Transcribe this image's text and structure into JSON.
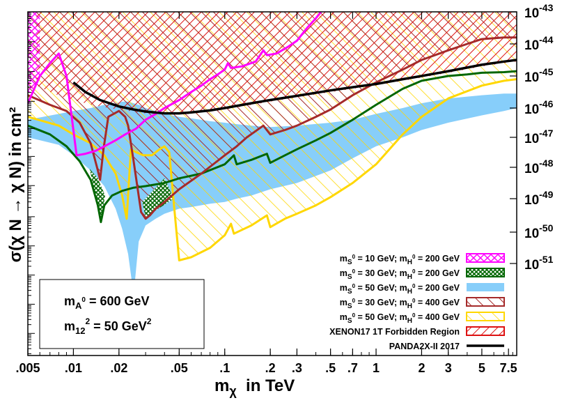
{
  "chart_data": {
    "type": "line",
    "xlabel": {
      "main": "m",
      "sub": "χ",
      "rest": "  in TeV"
    },
    "ylabel": "σ(χ N → χ N) in cm²",
    "x_scale": "log",
    "y_scale": "log",
    "xlim": [
      0.005,
      8.5
    ],
    "ylim_left": [
      1e-55,
      1e-43
    ],
    "ylim_right": [
      1e-51,
      1e-43
    ],
    "x_ticks": [
      {
        "value": 0.005,
        "label": ".005"
      },
      {
        "value": 0.01,
        "label": ".01"
      },
      {
        "value": 0.02,
        "label": ".02"
      },
      {
        "value": 0.05,
        "label": ".05"
      },
      {
        "value": 0.1,
        "label": ".1"
      },
      {
        "value": 0.2,
        "label": ".2"
      },
      {
        "value": 0.3,
        "label": ".3"
      },
      {
        "value": 0.5,
        "label": ".5"
      },
      {
        "value": 0.7,
        "label": ".7"
      },
      {
        "value": 1,
        "label": "1"
      },
      {
        "value": 2,
        "label": "2"
      },
      {
        "value": 3,
        "label": "3"
      },
      {
        "value": 5,
        "label": "5"
      },
      {
        "value": 7.5,
        "label": "7.5"
      }
    ],
    "y_ticks_right": [
      {
        "exp": -43,
        "base": "10",
        "sup": "-43"
      },
      {
        "exp": -44,
        "base": "10",
        "sup": "-44"
      },
      {
        "exp": -45,
        "base": "10",
        "sup": "-45"
      },
      {
        "exp": -46,
        "base": "10",
        "sup": "-46"
      },
      {
        "exp": -47,
        "base": "10",
        "sup": "-47"
      },
      {
        "exp": -48,
        "base": "10",
        "sup": "-48"
      },
      {
        "exp": -49,
        "base": "10",
        "sup": "-49"
      },
      {
        "exp": -50,
        "base": "10",
        "sup": "-50"
      },
      {
        "exp": -51,
        "base": "10",
        "sup": "-51"
      }
    ],
    "series": [
      {
        "name": "mS0 = 10 GeV; mH0 = 200 GeV",
        "color": "#ff00ff",
        "x": [
          0.005,
          0.006,
          0.007,
          0.008,
          0.009,
          0.0105,
          0.012,
          0.014,
          0.016,
          0.019,
          0.022,
          0.026,
          0.03,
          0.035,
          0.04,
          0.05,
          0.06,
          0.07,
          0.08,
          0.09,
          0.1,
          0.105,
          0.11,
          0.13,
          0.16,
          0.18,
          0.19,
          0.22,
          0.26,
          0.3,
          0.35,
          0.4,
          0.45
        ],
        "y": [
          -45.85,
          -45.0,
          -44.6,
          -44.3,
          -45.0,
          -47.6,
          -47.55,
          -47.45,
          -47.3,
          -47.1,
          -46.9,
          -46.7,
          -46.4,
          -46.2,
          -46.0,
          -45.75,
          -45.5,
          -45.3,
          -45.1,
          -44.95,
          -44.8,
          -44.6,
          -44.75,
          -44.7,
          -44.55,
          -44.2,
          -44.35,
          -44.3,
          -44.1,
          -43.9,
          -43.5,
          -43.2,
          -42.9
        ]
      },
      {
        "name": "mS0 = 30 GeV; mH0 = 200 GeV",
        "color": "#006600",
        "x": [
          0.005,
          0.007,
          0.009,
          0.011,
          0.013,
          0.0145,
          0.0152,
          0.016,
          0.018,
          0.021,
          0.025,
          0.03,
          0.04,
          0.05,
          0.07,
          0.1,
          0.115,
          0.12,
          0.15,
          0.19,
          0.2,
          0.25,
          0.3,
          0.4,
          0.5,
          0.7,
          1,
          1.5,
          2,
          3,
          4,
          5,
          7,
          8.5
        ],
        "y": [
          -46.6,
          -46.9,
          -47.3,
          -47.8,
          -48.4,
          -49.2,
          -49.7,
          -49.2,
          -48.9,
          -48.75,
          -48.65,
          -48.6,
          -48.5,
          -48.35,
          -48.2,
          -47.9,
          -47.6,
          -47.9,
          -47.75,
          -47.55,
          -47.85,
          -47.6,
          -47.4,
          -47.1,
          -46.85,
          -46.4,
          -45.9,
          -45.4,
          -45.15,
          -45.0,
          -44.95,
          -44.9,
          -44.88,
          -44.85
        ]
      },
      {
        "name": "mS0 = 50 GeV; mH0 = 200 GeV",
        "color": "#87cefa",
        "x": [
          0.005,
          0.008,
          0.01,
          0.013,
          0.016,
          0.019,
          0.021,
          0.023,
          0.025,
          0.027,
          0.03,
          0.035,
          0.04,
          0.05,
          0.06,
          0.08,
          0.1,
          0.12,
          0.15,
          0.2,
          0.3,
          0.5,
          0.7,
          1,
          1.5,
          2,
          3,
          5,
          7,
          8.5
        ],
        "y_upper": [
          -46.4,
          -46.2,
          -46.1,
          -46.0,
          -45.9,
          -45.85,
          -45.8,
          -45.8,
          -45.85,
          -45.9,
          -46.0,
          -46.1,
          -46.2,
          -46.3,
          -46.35,
          -46.45,
          -46.5,
          -46.55,
          -46.6,
          -46.65,
          -46.6,
          -46.5,
          -46.4,
          -46.2,
          -46.0,
          -45.85,
          -45.7,
          -45.6,
          -45.55,
          -45.55
        ],
        "y_lower": [
          -47.0,
          -47.25,
          -47.6,
          -48.1,
          -48.6,
          -49.3,
          -49.9,
          -50.7,
          -52.0,
          -50.3,
          -49.8,
          -49.6,
          -49.45,
          -49.3,
          -49.25,
          -49.15,
          -49.1,
          -49.0,
          -48.9,
          -48.7,
          -48.5,
          -48.1,
          -47.7,
          -47.3,
          -47.0,
          -46.75,
          -46.5,
          -46.25,
          -46.1,
          -46.0
        ]
      },
      {
        "name": "mS0 = 30 GeV; mH0 = 400 GeV",
        "color": "#a52a2a",
        "x": [
          0.005,
          0.007,
          0.009,
          0.011,
          0.013,
          0.0145,
          0.015,
          0.0158,
          0.017,
          0.02,
          0.022,
          0.023,
          0.025,
          0.028,
          0.03,
          0.032,
          0.035,
          0.04,
          0.05,
          0.07,
          0.1,
          0.12,
          0.14,
          0.18,
          0.2,
          0.25,
          0.3,
          0.4,
          0.5,
          0.7,
          1,
          1.5,
          2,
          3,
          4,
          5,
          7,
          8.5
        ],
        "y": [
          -45.6,
          -45.9,
          -46.1,
          -46.5,
          -47.2,
          -48.1,
          -48.4,
          -47.4,
          -46.3,
          -46.1,
          -46.3,
          -46.6,
          -47.8,
          -49.4,
          -49.6,
          -49.5,
          -49.3,
          -49.1,
          -48.7,
          -48.2,
          -47.6,
          -47.3,
          -47.0,
          -46.6,
          -46.9,
          -46.75,
          -46.6,
          -46.3,
          -46.05,
          -45.6,
          -45.2,
          -44.8,
          -44.5,
          -44.2,
          -44.0,
          -43.85,
          -43.8,
          -43.8
        ]
      },
      {
        "name": "mS0 = 50 GeV; mH0 = 400 GeV",
        "color": "#ffd700",
        "x": [
          0.005,
          0.008,
          0.01,
          0.013,
          0.016,
          0.019,
          0.021,
          0.0225,
          0.024,
          0.026,
          0.029,
          0.033,
          0.037,
          0.04,
          0.043,
          0.046,
          0.05,
          0.06,
          0.08,
          0.1,
          0.11,
          0.115,
          0.15,
          0.19,
          0.2,
          0.25,
          0.3,
          0.4,
          0.5,
          0.7,
          1,
          1.5,
          2,
          3,
          5,
          7,
          8.5
        ],
        "y": [
          -46.3,
          -46.6,
          -46.9,
          -47.2,
          -47.6,
          -48.2,
          -48.9,
          -49.6,
          -47.4,
          -47.5,
          -47.6,
          -47.6,
          -47.4,
          -47.3,
          -47.5,
          -49.1,
          -50.9,
          -50.8,
          -50.5,
          -50.1,
          -49.75,
          -50.05,
          -49.8,
          -49.5,
          -49.85,
          -49.6,
          -49.45,
          -49.2,
          -48.95,
          -48.5,
          -47.9,
          -46.9,
          -46.3,
          -45.7,
          -45.3,
          -45.15,
          -45.1
        ]
      },
      {
        "name": "PANDA2X-II 2017",
        "color": "#000000",
        "x": [
          0.01,
          0.012,
          0.015,
          0.02,
          0.025,
          0.03,
          0.04,
          0.05,
          0.06,
          0.08,
          0.1,
          0.15,
          0.2,
          0.3,
          0.5,
          0.7,
          1,
          1.5,
          2,
          3,
          5,
          7,
          8.5
        ],
        "y": [
          -45.2,
          -45.5,
          -45.75,
          -45.95,
          -46.05,
          -46.12,
          -46.18,
          -46.18,
          -46.15,
          -46.08,
          -46.0,
          -45.85,
          -45.75,
          -45.62,
          -45.45,
          -45.35,
          -45.25,
          -45.1,
          -45.0,
          -44.85,
          -44.65,
          -44.55,
          -44.5
        ]
      }
    ],
    "forbidden_region": {
      "name": "XENON17 1T Forbidden Region",
      "color": "#dd1111",
      "x": [
        0.0057,
        0.007,
        0.009,
        0.012,
        0.015,
        0.02,
        0.025,
        0.03,
        0.04,
        0.05,
        0.06,
        0.08,
        0.1,
        0.15,
        0.2,
        0.3,
        0.5,
        0.7,
        1,
        1.5,
        2,
        3,
        5,
        7,
        8.5
      ],
      "y_lower": [
        -45.3,
        -45.5,
        -45.7,
        -45.85,
        -45.95,
        -46.05,
        -46.12,
        -46.18,
        -46.22,
        -46.22,
        -46.2,
        -46.12,
        -46.05,
        -45.9,
        -45.8,
        -45.67,
        -45.5,
        -45.4,
        -45.3,
        -45.15,
        -45.05,
        -44.9,
        -44.7,
        -44.6,
        -44.55
      ]
    },
    "annotation": {
      "line1": {
        "main": "m",
        "sub": "A",
        "sup_in_sub": "0",
        "rest": " = 600 GeV"
      },
      "line2": {
        "main": "m",
        "sub": "12",
        "sup": "2",
        "rest": " = 50 GeV",
        "sup2": "2"
      }
    },
    "legend": [
      {
        "pre": "m",
        "s_sub": "S",
        "s_sup": "0",
        "mid": " = 10 GeV; m",
        "h_sub": "H",
        "h_sup": "0",
        "post": " = 200 GeV",
        "style": "crosshatch",
        "color": "#ff00ff"
      },
      {
        "pre": "m",
        "s_sub": "S",
        "s_sup": "0",
        "mid": " = 30 GeV; m",
        "h_sub": "H",
        "h_sup": "0",
        "post": " = 200 GeV",
        "style": "crosshatch",
        "color": "#006600"
      },
      {
        "pre": "m",
        "s_sub": "S",
        "s_sup": "0",
        "mid": " = 50 GeV; m",
        "h_sub": "H",
        "h_sup": "0",
        "post": " = 200 GeV",
        "style": "solid",
        "color": "#87cefa"
      },
      {
        "pre": "m",
        "s_sub": "S",
        "s_sup": "0",
        "mid": " = 30 GeV; m",
        "h_sub": "H",
        "h_sup": "0",
        "post": " = 400 GeV",
        "style": "hatch",
        "color": "#a52a2a"
      },
      {
        "pre": "m",
        "s_sub": "S",
        "s_sup": "0",
        "mid": " = 50 GeV; m",
        "h_sub": "H",
        "h_sup": "0",
        "post": " = 400 GeV",
        "style": "hatch",
        "color": "#ffd700"
      },
      {
        "text": "XENON17 1T Forbidden Region",
        "style": "densehatch",
        "color": "#dd1111"
      },
      {
        "text": "PANDA2X-II 2017",
        "style": "line",
        "color": "#000000"
      }
    ],
    "legend_position": "bottom-right",
    "grid": false
  }
}
